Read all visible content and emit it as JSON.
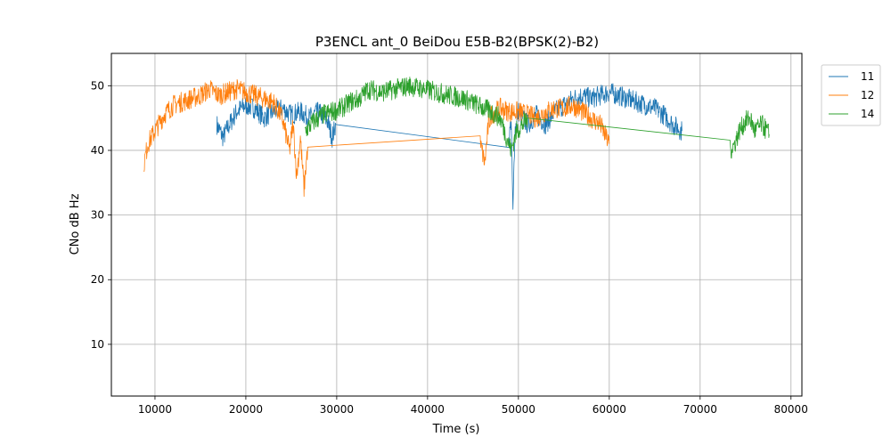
{
  "chart_data": {
    "type": "line",
    "title": "P3ENCL ant_0 BeiDou E5B-B2(BPSK(2)-B2)",
    "xlabel": "Time (s)",
    "ylabel": "CNo dB Hz",
    "xlim": [
      5200,
      81200
    ],
    "ylim": [
      2,
      55
    ],
    "xticks": [
      10000,
      20000,
      30000,
      40000,
      50000,
      60000,
      70000,
      80000
    ],
    "yticks": [
      10,
      20,
      30,
      40,
      50
    ],
    "grid": true,
    "legend_position": "outside-right-top",
    "series": [
      {
        "name": "11",
        "color": "#1f77b4",
        "points": [
          [
            16800,
            44
          ],
          [
            17500,
            42
          ],
          [
            18000,
            43.5
          ],
          [
            19000,
            46
          ],
          [
            20000,
            47
          ],
          [
            21000,
            46.5
          ],
          [
            22000,
            45
          ],
          [
            23000,
            46
          ],
          [
            24000,
            46.5
          ],
          [
            25000,
            45.5
          ],
          [
            26000,
            46
          ],
          [
            27000,
            45
          ],
          [
            28000,
            46
          ],
          [
            29000,
            44.5
          ],
          [
            29500,
            42
          ],
          [
            29900,
            44
          ],
          [
            49000,
            42
          ],
          [
            49200,
            45
          ],
          [
            49400,
            30
          ],
          [
            49600,
            43
          ],
          [
            50000,
            46
          ],
          [
            51000,
            44
          ],
          [
            52000,
            45.5
          ],
          [
            53000,
            44
          ],
          [
            54000,
            46
          ],
          [
            55000,
            47
          ],
          [
            56000,
            48
          ],
          [
            57000,
            48.5
          ],
          [
            58000,
            48
          ],
          [
            59000,
            48.5
          ],
          [
            60000,
            49
          ],
          [
            61000,
            48.5
          ],
          [
            62000,
            48
          ],
          [
            63000,
            47.5
          ],
          [
            64000,
            47
          ],
          [
            65000,
            46.5
          ],
          [
            66000,
            45.5
          ],
          [
            67000,
            44
          ],
          [
            68000,
            43
          ]
        ]
      },
      {
        "name": "12",
        "color": "#ff7f0e",
        "points": [
          [
            8800,
            38
          ],
          [
            9200,
            41
          ],
          [
            10000,
            43
          ],
          [
            11000,
            45.5
          ],
          [
            12000,
            47
          ],
          [
            13000,
            47.5
          ],
          [
            14000,
            48
          ],
          [
            15000,
            48.5
          ],
          [
            16000,
            49.5
          ],
          [
            17000,
            48.5
          ],
          [
            18000,
            49
          ],
          [
            19000,
            49.5
          ],
          [
            20000,
            49
          ],
          [
            21000,
            48.5
          ],
          [
            22000,
            48
          ],
          [
            23000,
            47.5
          ],
          [
            24000,
            45
          ],
          [
            24800,
            40
          ],
          [
            25200,
            44
          ],
          [
            25600,
            36
          ],
          [
            26000,
            42
          ],
          [
            26400,
            34
          ],
          [
            26800,
            40.5
          ],
          [
            45800,
            41
          ],
          [
            46300,
            38
          ],
          [
            46700,
            44
          ],
          [
            47000,
            45.5
          ],
          [
            48000,
            46.5
          ],
          [
            49000,
            46
          ],
          [
            50000,
            46
          ],
          [
            51000,
            45.5
          ],
          [
            52000,
            45
          ],
          [
            53000,
            46
          ],
          [
            54000,
            46.5
          ],
          [
            55000,
            46.5
          ],
          [
            56000,
            47
          ],
          [
            57000,
            46
          ],
          [
            58000,
            45
          ],
          [
            59000,
            44
          ],
          [
            60000,
            41
          ]
        ]
      },
      {
        "name": "14",
        "color": "#2ca02c",
        "points": [
          [
            26500,
            43
          ],
          [
            27500,
            44.5
          ],
          [
            28500,
            45.5
          ],
          [
            29500,
            46
          ],
          [
            30500,
            46.5
          ],
          [
            31500,
            47.5
          ],
          [
            32500,
            48
          ],
          [
            33500,
            49.5
          ],
          [
            35000,
            49
          ],
          [
            36500,
            49.5
          ],
          [
            38000,
            50
          ],
          [
            39500,
            49.5
          ],
          [
            41000,
            49
          ],
          [
            42500,
            48.5
          ],
          [
            44000,
            48
          ],
          [
            45500,
            47
          ],
          [
            47000,
            46
          ],
          [
            48000,
            45
          ],
          [
            48700,
            42
          ],
          [
            49200,
            40
          ],
          [
            49800,
            43
          ],
          [
            50500,
            44
          ],
          [
            51000,
            45
          ],
          [
            73300,
            40
          ],
          [
            73800,
            41
          ],
          [
            74300,
            43
          ],
          [
            75000,
            44.5
          ],
          [
            75500,
            45
          ],
          [
            76000,
            43
          ],
          [
            76800,
            44
          ],
          [
            77600,
            42.5
          ]
        ]
      }
    ]
  }
}
